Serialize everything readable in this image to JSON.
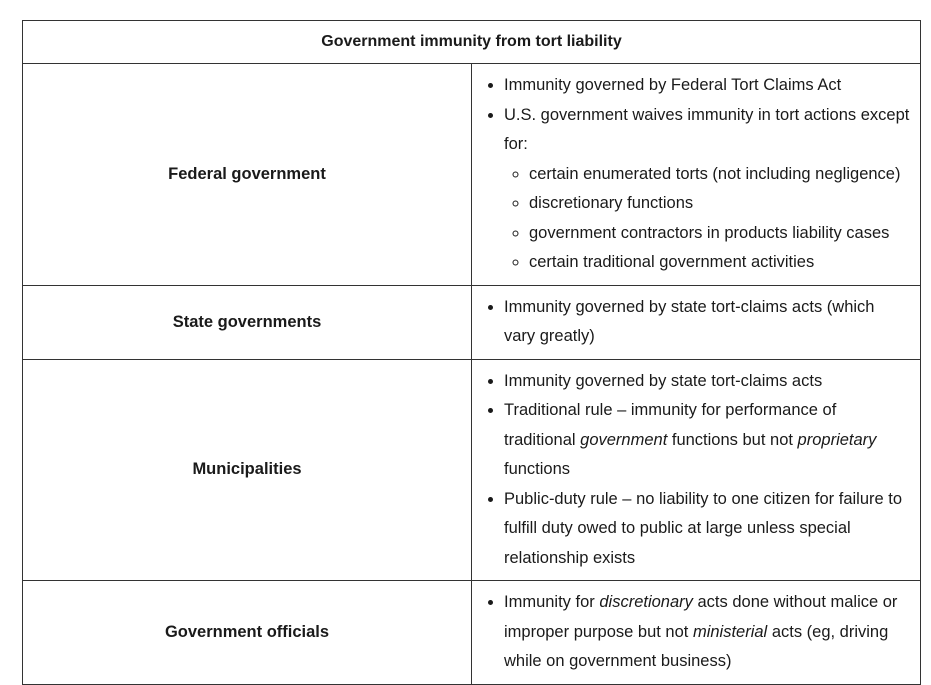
{
  "table": {
    "title": "Government immunity from tort liability",
    "rows": [
      {
        "label": "Federal government",
        "items": [
          "Immunity governed by Federal Tort Claims Act",
          "U.S. government waives immunity in tort actions except for:"
        ],
        "subitems": [
          "certain enumerated torts (not including negligence)",
          "discretionary functions",
          "government contractors in products liability cases",
          "certain traditional government activities"
        ]
      },
      {
        "label": "State governments",
        "items": [
          "Immunity governed by state tort-claims acts (which vary greatly)"
        ]
      },
      {
        "label": "Municipalities",
        "item1": "Immunity governed by state tort-claims acts",
        "item2": {
          "a": "Traditional rule – immunity for performance of traditional ",
          "b": "government",
          "c": " functions but not ",
          "d": "proprietary",
          "e": " functions"
        },
        "item3": "Public-duty rule – no liability to one citizen for failure to fulfill duty owed to public at large unless special relationship exists"
      },
      {
        "label": "Government officials",
        "item1": {
          "a": "Immunity for ",
          "b": "discretionary",
          "c": " acts done without malice or improper purpose but not ",
          "d": "ministerial",
          "e": " acts (eg, driving while on government business)"
        }
      }
    ]
  }
}
